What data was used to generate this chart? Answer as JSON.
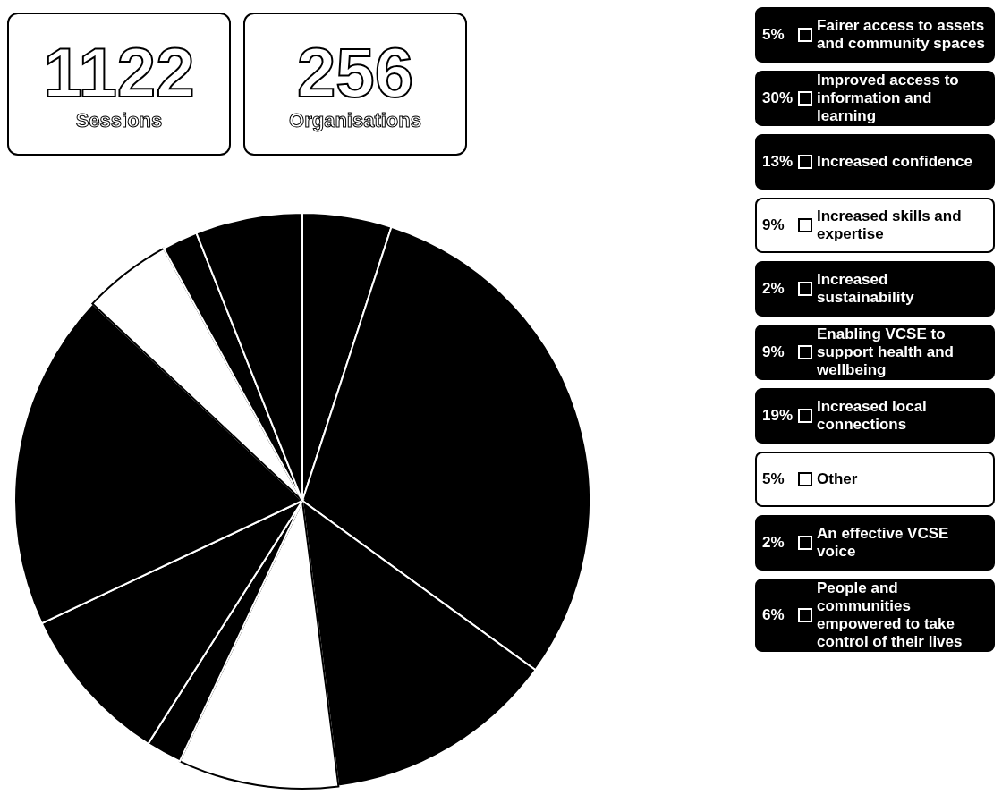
{
  "chart_data": {
    "type": "pie",
    "categories": [
      "Fairer access to assets and community spaces",
      "Improved access to information and learning",
      "Increased confidence",
      "Increased skills and expertise",
      "Increased sustainability",
      "Enabling VCSE to support health and wellbeing",
      "Increased local connections",
      "Other",
      "An effective VCSE voice",
      "People and communities empowered to take control of their lives"
    ],
    "values": [
      5,
      30,
      13,
      9,
      2,
      9,
      19,
      5,
      2,
      6
    ],
    "value_labels": [
      "5%",
      "30%",
      "13%",
      "9%",
      "2%",
      "9%",
      "19%",
      "5%",
      "2%",
      "6%"
    ],
    "colors": [
      "#000000",
      "#000000",
      "#000000",
      "#ffffff",
      "#000000",
      "#000000",
      "#000000",
      "#ffffff",
      "#000000",
      "#000000"
    ],
    "legend": "right",
    "annotations": [
      "1122",
      "Sessions",
      "256",
      "Organisations"
    ]
  }
}
